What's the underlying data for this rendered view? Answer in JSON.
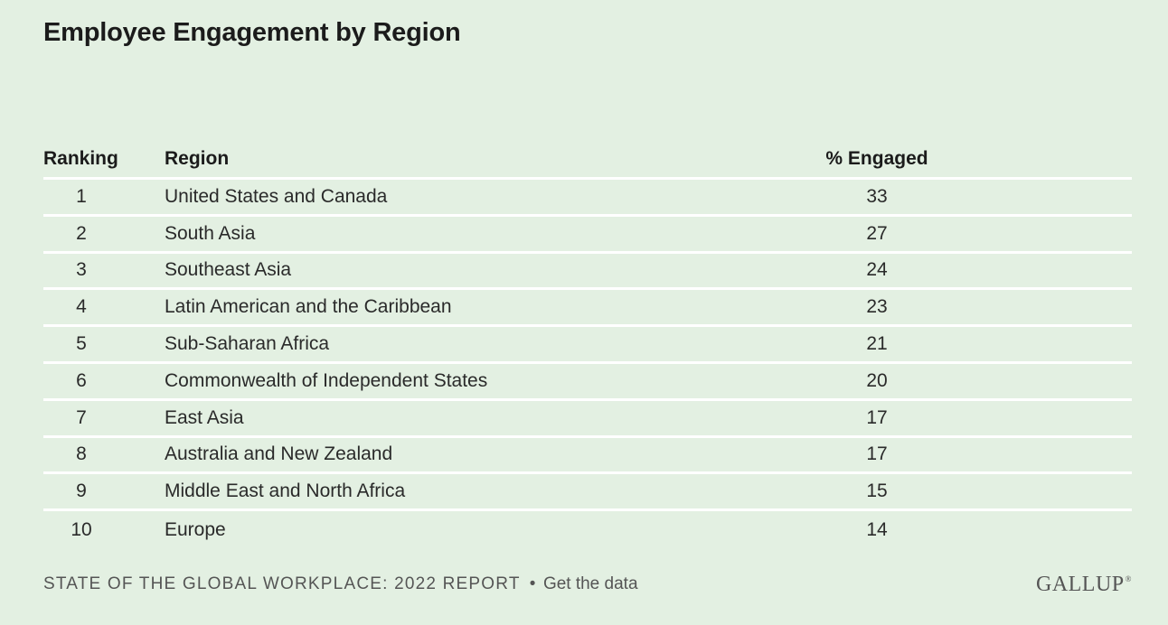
{
  "title": "Employee Engagement by Region",
  "table": {
    "headers": {
      "rank": "Ranking",
      "region": "Region",
      "pct": "% Engaged"
    }
  },
  "chart_data": {
    "type": "table",
    "title": "Employee Engagement by Region",
    "columns": [
      "Ranking",
      "Region",
      "% Engaged"
    ],
    "rows": [
      {
        "rank": "1",
        "region": "United States and Canada",
        "pct": "33"
      },
      {
        "rank": "2",
        "region": "South Asia",
        "pct": "27"
      },
      {
        "rank": "3",
        "region": "Southeast Asia",
        "pct": "24"
      },
      {
        "rank": "4",
        "region": "Latin American and the Caribbean",
        "pct": "23"
      },
      {
        "rank": "5",
        "region": "Sub-Saharan Africa",
        "pct": "21"
      },
      {
        "rank": "6",
        "region": "Commonwealth of Independent States",
        "pct": "20"
      },
      {
        "rank": "7",
        "region": "East Asia",
        "pct": "17"
      },
      {
        "rank": "8",
        "region": "Australia and New Zealand",
        "pct": "17"
      },
      {
        "rank": "9",
        "region": "Middle East and North Africa",
        "pct": "15"
      },
      {
        "rank": "10",
        "region": "Europe",
        "pct": "14"
      }
    ]
  },
  "footer": {
    "source": "STATE OF THE GLOBAL WORKPLACE: 2022 REPORT",
    "bullet": "•",
    "link": "Get the data"
  },
  "logo": {
    "text": "GALLUP",
    "mark": "®"
  },
  "colors": {
    "background": "#e3f0e2",
    "divider": "#ffffff",
    "text": "#222222"
  }
}
